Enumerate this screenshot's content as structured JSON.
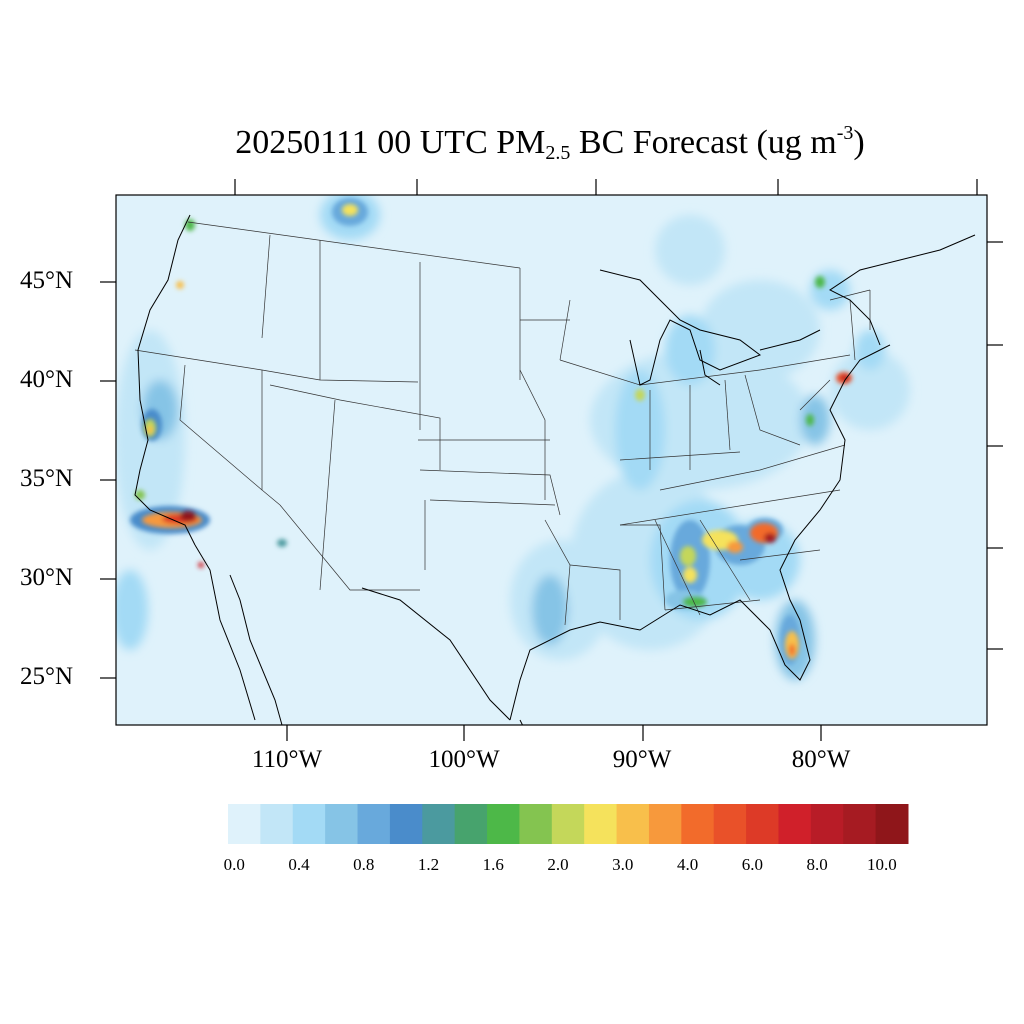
{
  "title": {
    "pre": "20250111 00 UTC PM",
    "sub": "2.5",
    "mid": " BC Forecast (ug m",
    "sup": "-3",
    "post": ")"
  },
  "axes": {
    "lat_labels": [
      "45°N",
      "40°N",
      "35°N",
      "30°N",
      "25°N"
    ],
    "lon_labels": [
      "110°W",
      "100°W",
      "90°W",
      "80°W"
    ]
  },
  "colorbar": {
    "colors": [
      "#dff2fb",
      "#c2e6f7",
      "#a3daf5",
      "#86c4e6",
      "#68a9dc",
      "#4a8ccb",
      "#4b9a9f",
      "#47a36d",
      "#4db848",
      "#84c450",
      "#c4d75a",
      "#f5e25c",
      "#f8bf4b",
      "#f7993c",
      "#f26b2b",
      "#e95129",
      "#dd3a27",
      "#d0202a",
      "#b81c27",
      "#a61b22",
      "#8f161a"
    ],
    "tick_labels": [
      "0.0",
      "0.4",
      "0.8",
      "1.2",
      "1.6",
      "2.0",
      "3.0",
      "4.0",
      "6.0",
      "8.0",
      "10.0"
    ]
  },
  "hotspots": [
    {
      "name": "southern-california",
      "level": 20
    },
    {
      "name": "central-california",
      "level": 9
    },
    {
      "name": "washington",
      "level": 7
    },
    {
      "name": "alberta",
      "level": 10
    },
    {
      "name": "new-york-city",
      "level": 19
    },
    {
      "name": "south-carolina",
      "level": 20
    },
    {
      "name": "georgia",
      "level": 15
    },
    {
      "name": "alabama",
      "level": 13
    },
    {
      "name": "florida",
      "level": 15
    },
    {
      "name": "tijuana",
      "level": 19
    }
  ]
}
